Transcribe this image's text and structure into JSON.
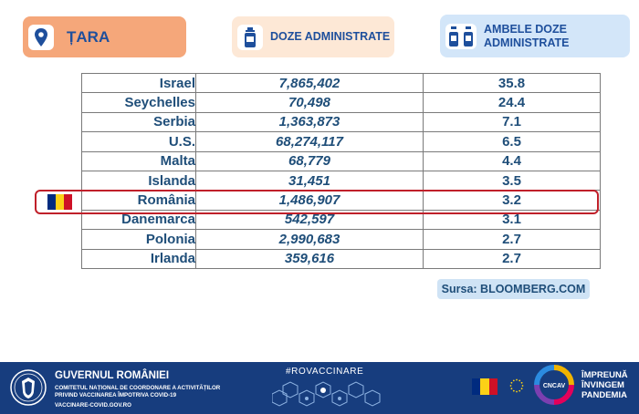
{
  "headers": {
    "country": "ȚARA",
    "doses": "DOZE ADMINISTRATE",
    "both_line1": "AMBELE DOZE",
    "both_line2": "ADMINISTRATE"
  },
  "table": {
    "rows": [
      {
        "country": "Israel",
        "doses": "7,865,402",
        "both": "35.8"
      },
      {
        "country": "Seychelles",
        "doses": "70,498",
        "both": "24.4"
      },
      {
        "country": "Serbia",
        "doses": "1,363,873",
        "both": "7.1"
      },
      {
        "country": "U.S.",
        "doses": "68,274,117",
        "both": "6.5"
      },
      {
        "country": "Malta",
        "doses": "68,779",
        "both": "4.4"
      },
      {
        "country": "Islanda",
        "doses": "31,451",
        "both": "3.5"
      },
      {
        "country": "România",
        "doses": "1,486,907",
        "both": "3.2"
      },
      {
        "country": "Danemarca",
        "doses": "542,597",
        "both": "3.1"
      },
      {
        "country": "Polonia",
        "doses": "2,990,683",
        "both": "2.7"
      },
      {
        "country": "Irlanda",
        "doses": "359,616",
        "both": "2.7"
      }
    ],
    "highlight_row": "România"
  },
  "source": "Sursa: BLOOMBERG.COM",
  "footer": {
    "gov_title": "GUVERNUL ROMÂNIEI",
    "gov_sub_line1": "COMITETUL NAȚIONAL DE COORDONARE A ACTIVITĂȚILOR",
    "gov_sub_line2": "PRIVIND VACCINAREA ÎMPOTRIVA COVID-19",
    "gov_web": "VACCINARE-COVID.GOV.RO",
    "hashtag": "#ROVACCINARE",
    "slogan_line1": "ÎMPREUNĂ",
    "slogan_line2": "ÎNVINGEM",
    "slogan_line3": "PANDEMIA",
    "logo_text": "CNCAV"
  },
  "colors": {
    "header_country_bg": "#f5a77a",
    "header_doses_bg": "#fde8d6",
    "header_both_bg": "#d3e6f9",
    "text_blue": "#1f4e79",
    "highlight_red": "#c0202a",
    "footer_bg": "#173d7e",
    "flag_blue": "#002b7f",
    "flag_yellow": "#fcd116",
    "flag_red": "#ce1126"
  },
  "icons": [
    "location-pin-icon",
    "vaccine-vial-icon",
    "two-vaccine-vials-icon",
    "romania-flag-icon",
    "coat-of-arms-icon",
    "eu-flag-icon"
  ]
}
